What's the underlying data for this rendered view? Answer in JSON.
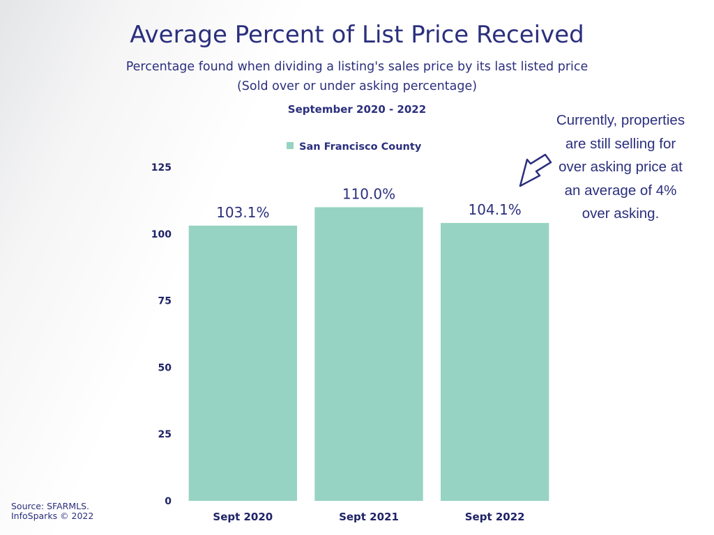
{
  "header": {
    "title": "Average Percent of List Price Received",
    "subtitle_line1": "Percentage found when dividing a listing's sales price by its last listed price",
    "subtitle_line2": "(Sold over or under asking percentage)",
    "date_range": "September 2020 - 2022"
  },
  "legend": {
    "label": "San Francisco County"
  },
  "annotation": {
    "lines": [
      "Currently, properties",
      "are still selling for",
      "over asking price at",
      "an average of 4%",
      "over asking."
    ]
  },
  "footer": {
    "source_line1": "Source: SFARMLS.",
    "source_line2": "InfoSparks © 2022"
  },
  "colors": {
    "bar": "#96d3c3",
    "text": "#2b2f7d",
    "axis_text": "#1f2366"
  },
  "chart_data": {
    "type": "bar",
    "title": "Average Percent of List Price Received",
    "categories": [
      "Sept 2020",
      "Sept 2021",
      "Sept 2022"
    ],
    "series": [
      {
        "name": "San Francisco County",
        "values": [
          103.1,
          110.0,
          104.1
        ],
        "labels": [
          "103.1%",
          "110.0%",
          "104.1%"
        ]
      }
    ],
    "yticks": [
      0,
      25,
      50,
      75,
      100,
      125
    ],
    "ylim": [
      0,
      125
    ],
    "xlabel": "",
    "ylabel": "",
    "grid": false,
    "legend_position": "top-center"
  }
}
